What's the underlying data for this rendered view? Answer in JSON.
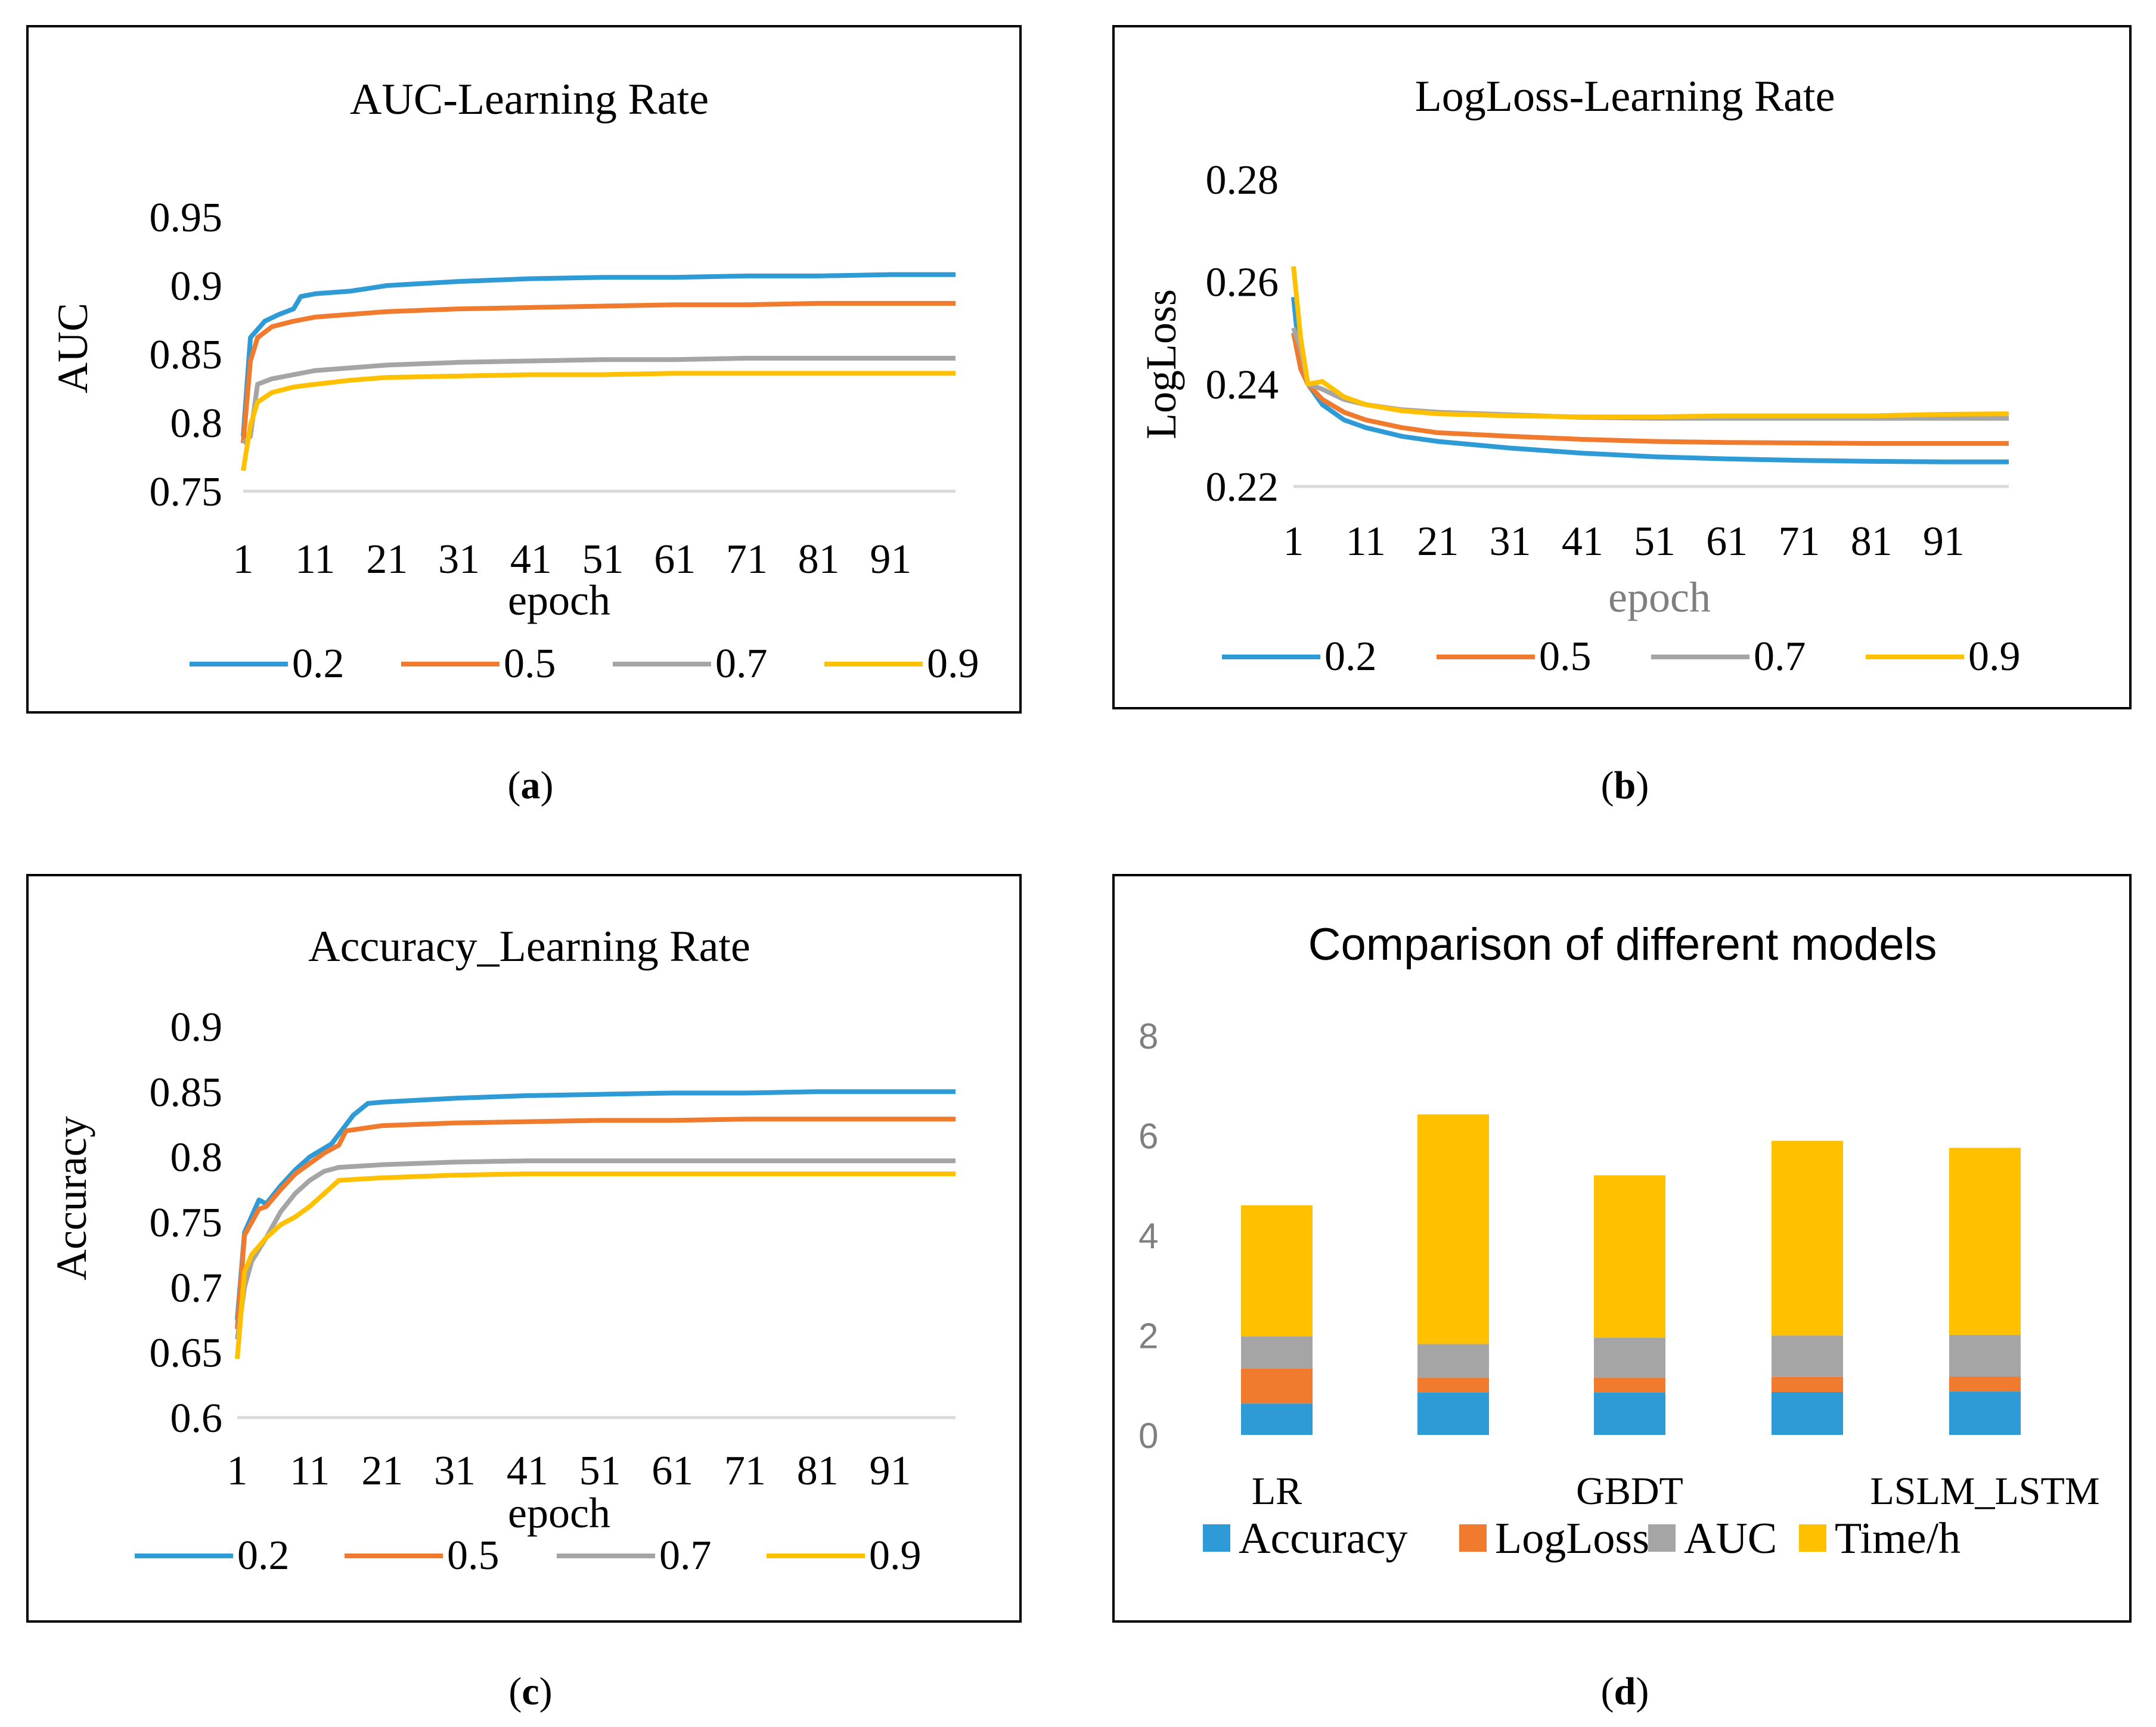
{
  "colors": {
    "blue": "#2E9BD6",
    "orange": "#F07A2E",
    "gray": "#A5A5A5",
    "yellow": "#FFC000",
    "grid": "#D9D9D9",
    "axis_gray": "#7F7F7F"
  },
  "captions": [
    "a",
    "b",
    "c",
    "d"
  ],
  "chart_data": [
    {
      "type": "line",
      "id": "a",
      "title": "AUC-Learning Rate",
      "xlabel": "epoch",
      "ylabel": "AUC",
      "xticks": [
        "1",
        "11",
        "21",
        "31",
        "41",
        "51",
        "61",
        "71",
        "81",
        "91"
      ],
      "yticks": [
        "0.95",
        "0.9",
        "0.85",
        "0.8",
        "0.75"
      ],
      "ylim": [
        0.75,
        0.95
      ],
      "xlim": [
        1,
        100
      ],
      "legend_position": "bottom",
      "series": [
        {
          "name": "0.2",
          "color_key": "blue",
          "points": [
            [
              1,
              0.79
            ],
            [
              2,
              0.862
            ],
            [
              3,
              0.868
            ],
            [
              4,
              0.874
            ],
            [
              6,
              0.879
            ],
            [
              8,
              0.883
            ],
            [
              9,
              0.892
            ],
            [
              11,
              0.894
            ],
            [
              16,
              0.896
            ],
            [
              21,
              0.9
            ],
            [
              31,
              0.903
            ],
            [
              41,
              0.905
            ],
            [
              51,
              0.906
            ],
            [
              61,
              0.906
            ],
            [
              71,
              0.907
            ],
            [
              81,
              0.907
            ],
            [
              91,
              0.908
            ],
            [
              100,
              0.908
            ]
          ]
        },
        {
          "name": "0.5",
          "color_key": "orange",
          "points": [
            [
              1,
              0.785
            ],
            [
              2,
              0.845
            ],
            [
              3,
              0.862
            ],
            [
              5,
              0.87
            ],
            [
              8,
              0.874
            ],
            [
              11,
              0.877
            ],
            [
              16,
              0.879
            ],
            [
              21,
              0.881
            ],
            [
              31,
              0.883
            ],
            [
              41,
              0.884
            ],
            [
              51,
              0.885
            ],
            [
              61,
              0.886
            ],
            [
              71,
              0.886
            ],
            [
              81,
              0.887
            ],
            [
              91,
              0.887
            ],
            [
              100,
              0.887
            ]
          ]
        },
        {
          "name": "0.7",
          "color_key": "gray",
          "points": [
            [
              1,
              0.785
            ],
            [
              2,
              0.79
            ],
            [
              3,
              0.828
            ],
            [
              5,
              0.832
            ],
            [
              8,
              0.835
            ],
            [
              11,
              0.838
            ],
            [
              16,
              0.84
            ],
            [
              21,
              0.842
            ],
            [
              31,
              0.844
            ],
            [
              41,
              0.845
            ],
            [
              51,
              0.846
            ],
            [
              61,
              0.846
            ],
            [
              71,
              0.847
            ],
            [
              81,
              0.847
            ],
            [
              91,
              0.847
            ],
            [
              100,
              0.847
            ]
          ]
        },
        {
          "name": "0.9",
          "color_key": "yellow",
          "points": [
            [
              1,
              0.765
            ],
            [
              2,
              0.798
            ],
            [
              3,
              0.815
            ],
            [
              5,
              0.822
            ],
            [
              8,
              0.826
            ],
            [
              11,
              0.828
            ],
            [
              16,
              0.831
            ],
            [
              21,
              0.833
            ],
            [
              31,
              0.834
            ],
            [
              41,
              0.835
            ],
            [
              51,
              0.835
            ],
            [
              61,
              0.836
            ],
            [
              71,
              0.836
            ],
            [
              81,
              0.836
            ],
            [
              91,
              0.836
            ],
            [
              100,
              0.836
            ]
          ]
        }
      ]
    },
    {
      "type": "line",
      "id": "b",
      "title": "LogLoss-Learning Rate",
      "xlabel": "epoch",
      "ylabel": "LogLoss",
      "xticks": [
        "1",
        "11",
        "21",
        "31",
        "41",
        "51",
        "61",
        "71",
        "81",
        "91"
      ],
      "yticks": [
        "0.28",
        "0.26",
        "0.24",
        "0.22"
      ],
      "ylim": [
        0.22,
        0.28
      ],
      "xlim": [
        1,
        100
      ],
      "legend_position": "bottom",
      "series": [
        {
          "name": "0.2",
          "color_key": "blue",
          "points": [
            [
              1,
              0.257
            ],
            [
              2,
              0.243
            ],
            [
              3,
              0.24
            ],
            [
              5,
              0.236
            ],
            [
              8,
              0.233
            ],
            [
              11,
              0.2315
            ],
            [
              16,
              0.2298
            ],
            [
              21,
              0.2288
            ],
            [
              31,
              0.2275
            ],
            [
              41,
              0.2265
            ],
            [
              51,
              0.2258
            ],
            [
              61,
              0.2254
            ],
            [
              71,
              0.2251
            ],
            [
              81,
              0.2249
            ],
            [
              91,
              0.2248
            ],
            [
              100,
              0.2248
            ]
          ]
        },
        {
          "name": "0.5",
          "color_key": "orange",
          "points": [
            [
              1,
              0.25
            ],
            [
              2,
              0.243
            ],
            [
              3,
              0.24
            ],
            [
              5,
              0.237
            ],
            [
              8,
              0.2345
            ],
            [
              11,
              0.233
            ],
            [
              16,
              0.2315
            ],
            [
              21,
              0.2305
            ],
            [
              31,
              0.2298
            ],
            [
              41,
              0.2292
            ],
            [
              51,
              0.2288
            ],
            [
              61,
              0.2286
            ],
            [
              71,
              0.2285
            ],
            [
              81,
              0.2284
            ],
            [
              91,
              0.2284
            ],
            [
              100,
              0.2284
            ]
          ]
        },
        {
          "name": "0.7",
          "color_key": "gray",
          "points": [
            [
              1,
              0.251
            ],
            [
              2,
              0.247
            ],
            [
              3,
              0.24
            ],
            [
              5,
              0.239
            ],
            [
              8,
              0.237
            ],
            [
              11,
              0.236
            ],
            [
              16,
              0.235
            ],
            [
              21,
              0.2345
            ],
            [
              31,
              0.234
            ],
            [
              41,
              0.2335
            ],
            [
              51,
              0.2333
            ],
            [
              61,
              0.2333
            ],
            [
              71,
              0.2333
            ],
            [
              81,
              0.2333
            ],
            [
              91,
              0.2333
            ],
            [
              100,
              0.2333
            ]
          ]
        },
        {
          "name": "0.9",
          "color_key": "yellow",
          "points": [
            [
              1,
              0.263
            ],
            [
              2,
              0.249
            ],
            [
              3,
              0.24
            ],
            [
              5,
              0.2405
            ],
            [
              8,
              0.2375
            ],
            [
              11,
              0.236
            ],
            [
              16,
              0.2348
            ],
            [
              21,
              0.2342
            ],
            [
              31,
              0.2338
            ],
            [
              41,
              0.2336
            ],
            [
              51,
              0.2336
            ],
            [
              61,
              0.2338
            ],
            [
              71,
              0.2338
            ],
            [
              81,
              0.2338
            ],
            [
              91,
              0.2341
            ],
            [
              100,
              0.2342
            ]
          ]
        }
      ]
    },
    {
      "type": "line",
      "id": "c",
      "title": "Accuracy_Learning Rate",
      "xlabel": "epoch",
      "ylabel": "Accuracy",
      "xticks": [
        "1",
        "11",
        "21",
        "31",
        "41",
        "51",
        "61",
        "71",
        "81",
        "91"
      ],
      "yticks": [
        "0.9",
        "0.85",
        "0.8",
        "0.75",
        "0.7",
        "0.65",
        "0.6"
      ],
      "ylim": [
        0.6,
        0.9
      ],
      "xlim": [
        1,
        100
      ],
      "legend_position": "bottom",
      "series": [
        {
          "name": "0.2",
          "color_key": "blue",
          "points": [
            [
              1,
              0.675
            ],
            [
              2,
              0.742
            ],
            [
              4,
              0.767
            ],
            [
              5,
              0.764
            ],
            [
              7,
              0.778
            ],
            [
              9,
              0.79
            ],
            [
              11,
              0.8
            ],
            [
              14,
              0.81
            ],
            [
              17,
              0.832
            ],
            [
              19,
              0.841
            ],
            [
              21,
              0.842
            ],
            [
              31,
              0.845
            ],
            [
              41,
              0.847
            ],
            [
              51,
              0.848
            ],
            [
              61,
              0.849
            ],
            [
              71,
              0.849
            ],
            [
              81,
              0.85
            ],
            [
              91,
              0.85
            ],
            [
              100,
              0.85
            ]
          ]
        },
        {
          "name": "0.5",
          "color_key": "orange",
          "points": [
            [
              1,
              0.668
            ],
            [
              2,
              0.74
            ],
            [
              4,
              0.76
            ],
            [
              5,
              0.762
            ],
            [
              7,
              0.775
            ],
            [
              9,
              0.787
            ],
            [
              11,
              0.795
            ],
            [
              13,
              0.803
            ],
            [
              15,
              0.809
            ],
            [
              16,
              0.82
            ],
            [
              21,
              0.824
            ],
            [
              31,
              0.826
            ],
            [
              41,
              0.827
            ],
            [
              51,
              0.828
            ],
            [
              61,
              0.828
            ],
            [
              71,
              0.829
            ],
            [
              81,
              0.829
            ],
            [
              91,
              0.829
            ],
            [
              100,
              0.829
            ]
          ]
        },
        {
          "name": "0.7",
          "color_key": "gray",
          "points": [
            [
              1,
              0.66
            ],
            [
              2,
              0.7
            ],
            [
              3,
              0.72
            ],
            [
              5,
              0.738
            ],
            [
              7,
              0.758
            ],
            [
              9,
              0.772
            ],
            [
              11,
              0.782
            ],
            [
              13,
              0.789
            ],
            [
              15,
              0.792
            ],
            [
              21,
              0.794
            ],
            [
              31,
              0.796
            ],
            [
              41,
              0.797
            ],
            [
              51,
              0.797
            ],
            [
              61,
              0.797
            ],
            [
              71,
              0.797
            ],
            [
              81,
              0.797
            ],
            [
              91,
              0.797
            ],
            [
              100,
              0.797
            ]
          ]
        },
        {
          "name": "0.9",
          "color_key": "yellow",
          "points": [
            [
              1,
              0.645
            ],
            [
              2,
              0.712
            ],
            [
              3,
              0.725
            ],
            [
              5,
              0.738
            ],
            [
              7,
              0.748
            ],
            [
              9,
              0.754
            ],
            [
              11,
              0.762
            ],
            [
              13,
              0.772
            ],
            [
              15,
              0.782
            ],
            [
              21,
              0.784
            ],
            [
              31,
              0.786
            ],
            [
              41,
              0.787
            ],
            [
              51,
              0.787
            ],
            [
              61,
              0.787
            ],
            [
              71,
              0.787
            ],
            [
              81,
              0.787
            ],
            [
              91,
              0.787
            ],
            [
              100,
              0.787
            ]
          ]
        }
      ]
    },
    {
      "type": "bar",
      "stacked": true,
      "id": "d",
      "title": "Comparison of different models",
      "categories": [
        "LR",
        "",
        "GBDT",
        "",
        "LSLM_LSTM"
      ],
      "yticks": [
        "8",
        "6",
        "4",
        "2",
        "0"
      ],
      "ylim": [
        0,
        8
      ],
      "legend_position": "bottom",
      "series": [
        {
          "name": "Accuracy",
          "color_key": "blue",
          "values": [
            0.63,
            0.85,
            0.85,
            0.86,
            0.87
          ]
        },
        {
          "name": "LogLoss",
          "color_key": "orange",
          "values": [
            0.7,
            0.3,
            0.3,
            0.3,
            0.3
          ]
        },
        {
          "name": "AUC",
          "color_key": "gray",
          "values": [
            0.64,
            0.67,
            0.8,
            0.83,
            0.83
          ]
        },
        {
          "name": "Time/h",
          "color_key": "yellow",
          "values": [
            2.63,
            4.6,
            3.25,
            3.9,
            3.75
          ]
        }
      ]
    }
  ]
}
